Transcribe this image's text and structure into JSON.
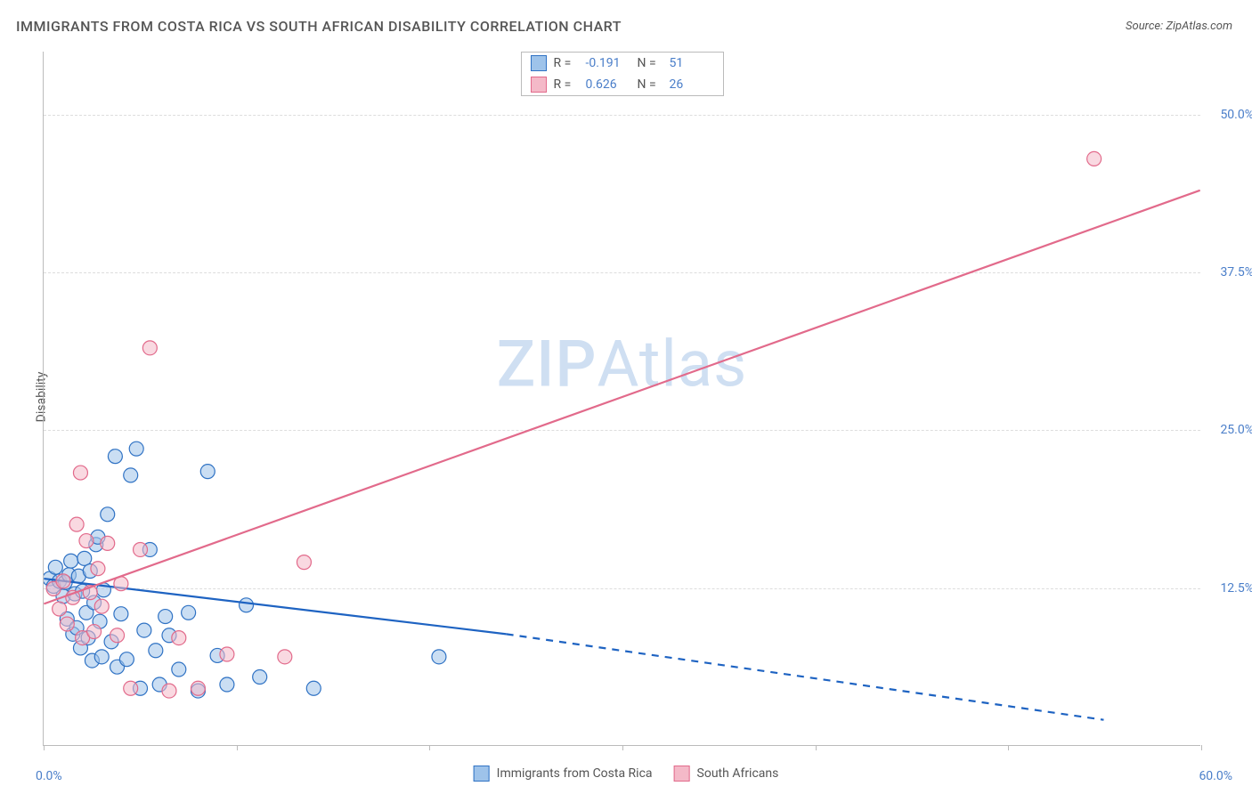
{
  "title": "IMMIGRANTS FROM COSTA RICA VS SOUTH AFRICAN DISABILITY CORRELATION CHART",
  "source_label": "Source:",
  "source_name": "ZipAtlas.com",
  "watermark_prefix": "ZIP",
  "watermark_suffix": "Atlas",
  "y_axis_label": "Disability",
  "chart": {
    "type": "scatter",
    "background_color": "#ffffff",
    "grid_color": "#dddddd",
    "axis_color": "#bbbbbb",
    "tick_label_color": "#4a7ec9",
    "xlim": [
      0,
      60
    ],
    "ylim": [
      0,
      55
    ],
    "y_ticks": [
      12.5,
      25.0,
      37.5,
      50.0
    ],
    "y_tick_labels": [
      "12.5%",
      "25.0%",
      "37.5%",
      "50.0%"
    ],
    "x_origin_label": "0.0%",
    "x_max_label": "60.0%",
    "x_tick_positions": [
      0,
      10,
      20,
      30,
      40,
      50,
      60
    ],
    "marker_radius": 8,
    "marker_opacity": 0.55,
    "marker_stroke_width": 1.2,
    "line_width": 2.2,
    "series": [
      {
        "key": "costa_rica",
        "label": "Immigrants from Costa Rica",
        "fill_color": "#9ec3ea",
        "stroke_color": "#2f72c4",
        "line_color": "#1e63c2",
        "R": "-0.191",
        "N": "51",
        "trend": {
          "x1": 0,
          "y1": 13.2,
          "x2": 24,
          "y2": 8.8,
          "x3": 55,
          "y3": 2.0,
          "dashed_after": 24
        },
        "points": [
          [
            0.3,
            13.2
          ],
          [
            0.5,
            12.6
          ],
          [
            0.6,
            14.1
          ],
          [
            0.8,
            13.0
          ],
          [
            1.0,
            11.8
          ],
          [
            1.1,
            12.9
          ],
          [
            1.2,
            10.0
          ],
          [
            1.3,
            13.5
          ],
          [
            1.4,
            14.6
          ],
          [
            1.5,
            8.8
          ],
          [
            1.6,
            12.0
          ],
          [
            1.7,
            9.3
          ],
          [
            1.8,
            13.4
          ],
          [
            1.9,
            7.7
          ],
          [
            2.0,
            12.2
          ],
          [
            2.1,
            14.8
          ],
          [
            2.2,
            10.5
          ],
          [
            2.3,
            8.5
          ],
          [
            2.4,
            13.8
          ],
          [
            2.5,
            6.7
          ],
          [
            2.6,
            11.3
          ],
          [
            2.7,
            15.9
          ],
          [
            2.8,
            16.5
          ],
          [
            2.9,
            9.8
          ],
          [
            3.0,
            7.0
          ],
          [
            3.1,
            12.3
          ],
          [
            3.3,
            18.3
          ],
          [
            3.5,
            8.2
          ],
          [
            3.7,
            22.9
          ],
          [
            3.8,
            6.2
          ],
          [
            4.0,
            10.4
          ],
          [
            4.3,
            6.8
          ],
          [
            4.5,
            21.4
          ],
          [
            4.8,
            23.5
          ],
          [
            5.0,
            4.5
          ],
          [
            5.2,
            9.1
          ],
          [
            5.5,
            15.5
          ],
          [
            5.8,
            7.5
          ],
          [
            6.0,
            4.8
          ],
          [
            6.3,
            10.2
          ],
          [
            6.5,
            8.7
          ],
          [
            7.0,
            6.0
          ],
          [
            7.5,
            10.5
          ],
          [
            8.0,
            4.3
          ],
          [
            8.5,
            21.7
          ],
          [
            9.0,
            7.1
          ],
          [
            9.5,
            4.8
          ],
          [
            10.5,
            11.1
          ],
          [
            11.2,
            5.4
          ],
          [
            14.0,
            4.5
          ],
          [
            20.5,
            7.0
          ]
        ]
      },
      {
        "key": "south_africans",
        "label": "South Africans",
        "fill_color": "#f4b9c8",
        "stroke_color": "#e26a8b",
        "line_color": "#e26a8b",
        "R": "0.626",
        "N": "26",
        "trend": {
          "x1": 0,
          "y1": 11.2,
          "x2": 60,
          "y2": 44.0
        },
        "points": [
          [
            0.5,
            12.4
          ],
          [
            0.8,
            10.8
          ],
          [
            1.0,
            13.0
          ],
          [
            1.2,
            9.6
          ],
          [
            1.5,
            11.7
          ],
          [
            1.7,
            17.5
          ],
          [
            1.9,
            21.6
          ],
          [
            2.0,
            8.5
          ],
          [
            2.2,
            16.2
          ],
          [
            2.4,
            12.1
          ],
          [
            2.6,
            9.0
          ],
          [
            2.8,
            14.0
          ],
          [
            3.0,
            11.0
          ],
          [
            3.3,
            16.0
          ],
          [
            3.8,
            8.7
          ],
          [
            4.0,
            12.8
          ],
          [
            4.5,
            4.5
          ],
          [
            5.0,
            15.5
          ],
          [
            5.5,
            31.5
          ],
          [
            6.5,
            4.3
          ],
          [
            7.0,
            8.5
          ],
          [
            8.0,
            4.5
          ],
          [
            9.5,
            7.2
          ],
          [
            12.5,
            7.0
          ],
          [
            13.5,
            14.5
          ],
          [
            54.5,
            46.5
          ]
        ]
      }
    ]
  },
  "legend_top_label_R": "R =",
  "legend_top_label_N": "N ="
}
